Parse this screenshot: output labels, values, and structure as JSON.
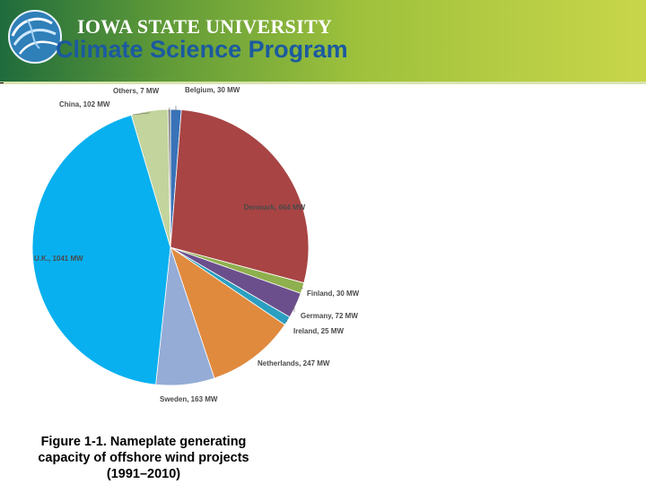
{
  "header": {
    "university": "IOWA STATE UNIVERSITY",
    "program": "Climate Science Program",
    "logo_icon": "globe-swirl-icon"
  },
  "colors": {
    "banner_dark": "#1f6b3c",
    "banner_light": "#c9d64a",
    "program_text": "#1b5aa0"
  },
  "caption": {
    "line1": "Figure 1-1. Nameplate generating",
    "line2": "capacity of offshore wind projects",
    "line3": "(1991–2010)"
  },
  "chart_data": {
    "type": "pie",
    "title": "",
    "unit": "MW",
    "start": "12 o'clock",
    "direction": "clockwise",
    "legend": "none (slice labels)",
    "slices": [
      {
        "label": "Belgium, 30 MW",
        "value": 30,
        "color": "#3a72b8"
      },
      {
        "label": "Denmark, 664 MW",
        "value": 664,
        "color": "#a84444"
      },
      {
        "label": "Finland, 30 MW",
        "value": 30,
        "color": "#8fb04e"
      },
      {
        "label": "Germany, 72 MW",
        "value": 72,
        "color": "#6b4f8c"
      },
      {
        "label": "Ireland, 25 MW",
        "value": 25,
        "color": "#2b9fc0"
      },
      {
        "label": "Netherlands, 247 MW",
        "value": 247,
        "color": "#e08a3e"
      },
      {
        "label": "Sweden, 163 MW",
        "value": 163,
        "color": "#94acd6"
      },
      {
        "label": "U.K., 1041 MW",
        "value": 1041,
        "color": "#08b0ef"
      },
      {
        "label": "China, 102 MW",
        "value": 102,
        "color": "#c3d49c"
      },
      {
        "label": "Others, 7 MW",
        "value": 7,
        "color": "#7f7f7f"
      }
    ]
  }
}
